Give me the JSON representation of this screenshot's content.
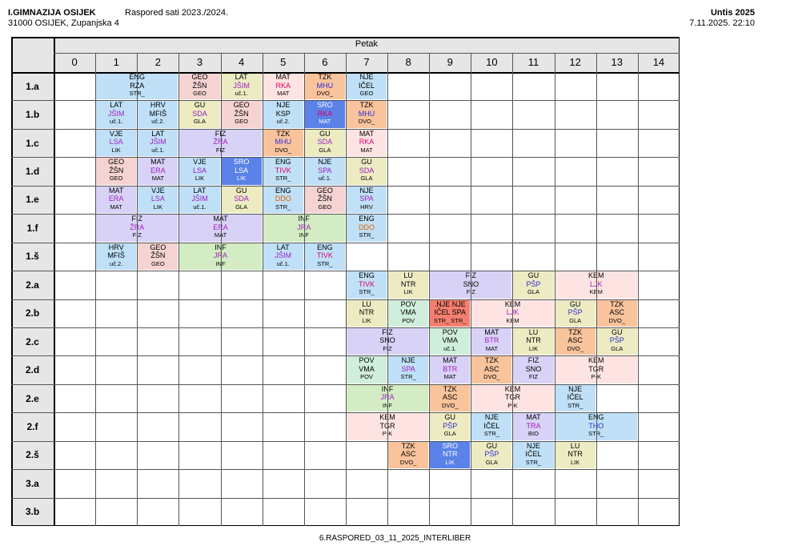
{
  "header": {
    "school": "I.GIMNAZIJA OSIJEK",
    "address": "31000 OSIJEK, Zupanjska 4",
    "schedule_title": "Raspored sati 2023./2024.",
    "app": "Untis 2025",
    "datetime": "7.11.2025.  22:10"
  },
  "day": "Petak",
  "periods": [
    "0",
    "1",
    "2",
    "3",
    "4",
    "5",
    "6",
    "7",
    "8",
    "9",
    "10",
    "11",
    "12",
    "13",
    "14"
  ],
  "rows": [
    "1.a",
    "1.b",
    "1.c",
    "1.d",
    "1.e",
    "1.f",
    "1.š",
    "2.a",
    "2.b",
    "2.c",
    "2.d",
    "2.e",
    "2.f",
    "2.š",
    "3.a",
    "3.b"
  ],
  "colors": {
    "blue": "#bfe0f7",
    "orange": "#f9c39c",
    "purple": "#d9d2f7",
    "yellow": "#ecebc2",
    "pink": "#f6d3d3",
    "green": "#d3ecc3",
    "lightpink": "#fde4e2",
    "darkblue": "#5a82e8",
    "red": "#f57f6f",
    "mint": "#cfeedc",
    "header": "#e6e6e6"
  },
  "lessons": [
    {
      "row": 0,
      "start": 1,
      "span": 2,
      "lines": [
        "ENG",
        "RZA",
        "STR_"
      ],
      "color": "blue",
      "c2": "#000"
    },
    {
      "row": 0,
      "start": 3,
      "span": 1,
      "lines": [
        "GEO",
        "ŽŠN",
        "GEO"
      ],
      "color": "pink",
      "c2": "#000"
    },
    {
      "row": 0,
      "start": 4,
      "span": 1,
      "lines": [
        "LAT",
        "JŠIM",
        "uč.1."
      ],
      "color": "yellow",
      "c2": "#a020c0"
    },
    {
      "row": 0,
      "start": 5,
      "span": 1,
      "lines": [
        "MAT",
        "RKA",
        "MAT"
      ],
      "color": "lightpink",
      "c2": "#e0006a"
    },
    {
      "row": 0,
      "start": 6,
      "span": 1,
      "lines": [
        "TZK",
        "MHU",
        "DVO_"
      ],
      "color": "orange",
      "c2": "#3030d0"
    },
    {
      "row": 0,
      "start": 7,
      "span": 1,
      "lines": [
        "NJE",
        "IČEL",
        "GEO"
      ],
      "color": "blue",
      "c2": "#000"
    },
    {
      "row": 1,
      "start": 1,
      "span": 1,
      "lines": [
        "LAT",
        "JŠIM",
        "uč.1."
      ],
      "color": "blue",
      "c2": "#a020c0"
    },
    {
      "row": 1,
      "start": 2,
      "span": 1,
      "lines": [
        "HRV",
        "MFIŠ",
        "uč.2."
      ],
      "color": "blue",
      "c2": "#000"
    },
    {
      "row": 1,
      "start": 3,
      "span": 1,
      "lines": [
        "GU",
        "SDA",
        "GLA"
      ],
      "color": "yellow",
      "c2": "#a020c0"
    },
    {
      "row": 1,
      "start": 4,
      "span": 1,
      "lines": [
        "GEO",
        "ŽŠN",
        "GEO"
      ],
      "color": "pink",
      "c2": "#000"
    },
    {
      "row": 1,
      "start": 5,
      "span": 1,
      "lines": [
        "NJE",
        "KSP",
        "uč.2."
      ],
      "color": "blue",
      "c2": "#000"
    },
    {
      "row": 1,
      "start": 6,
      "span": 1,
      "lines": [
        "SRO",
        "RKA",
        "MAT"
      ],
      "color": "darkblue",
      "c2": "#e0006a",
      "c1": "#fff",
      "c3": "#fff"
    },
    {
      "row": 1,
      "start": 7,
      "span": 1,
      "lines": [
        "TZK",
        "MHU",
        "DVO_"
      ],
      "color": "orange",
      "c2": "#3030d0"
    },
    {
      "row": 2,
      "start": 1,
      "span": 1,
      "lines": [
        "VJE",
        "LSA",
        "LIK"
      ],
      "color": "blue",
      "c2": "#a020c0"
    },
    {
      "row": 2,
      "start": 2,
      "span": 1,
      "lines": [
        "LAT",
        "JŠIM",
        "uč.1."
      ],
      "color": "blue",
      "c2": "#a020c0"
    },
    {
      "row": 2,
      "start": 3,
      "span": 2,
      "lines": [
        "FIZ",
        "ŽRA",
        "FIZ"
      ],
      "color": "purple",
      "c2": "#a020c0"
    },
    {
      "row": 2,
      "start": 5,
      "span": 1,
      "lines": [
        "TZK",
        "MHU",
        "DVO_"
      ],
      "color": "orange",
      "c2": "#3030d0"
    },
    {
      "row": 2,
      "start": 6,
      "span": 1,
      "lines": [
        "GU",
        "SDA",
        "GLA"
      ],
      "color": "yellow",
      "c2": "#a020c0"
    },
    {
      "row": 2,
      "start": 7,
      "span": 1,
      "lines": [
        "MAT",
        "RKA",
        "MAT"
      ],
      "color": "lightpink",
      "c2": "#e0006a"
    },
    {
      "row": 3,
      "start": 1,
      "span": 1,
      "lines": [
        "GEO",
        "ŽŠN",
        "GEO"
      ],
      "color": "pink",
      "c2": "#000"
    },
    {
      "row": 3,
      "start": 2,
      "span": 1,
      "lines": [
        "MAT",
        "ERA",
        "MAT"
      ],
      "color": "purple",
      "c2": "#a020c0"
    },
    {
      "row": 3,
      "start": 3,
      "span": 1,
      "lines": [
        "VJE",
        "LSA",
        "LIK"
      ],
      "color": "blue",
      "c2": "#a020c0"
    },
    {
      "row": 3,
      "start": 4,
      "span": 1,
      "lines": [
        "SRO",
        "LSA",
        "LIK"
      ],
      "color": "darkblue",
      "c2": "#fff",
      "c1": "#fff",
      "c3": "#fff"
    },
    {
      "row": 3,
      "start": 5,
      "span": 1,
      "lines": [
        "ENG",
        "TIVK",
        "STR_"
      ],
      "color": "blue",
      "c2": "#e0006a"
    },
    {
      "row": 3,
      "start": 6,
      "span": 1,
      "lines": [
        "NJE",
        "SPA",
        "uč.1."
      ],
      "color": "blue",
      "c2": "#a020c0"
    },
    {
      "row": 3,
      "start": 7,
      "span": 1,
      "lines": [
        "GU",
        "SDA",
        "GLA"
      ],
      "color": "yellow",
      "c2": "#a020c0"
    },
    {
      "row": 4,
      "start": 1,
      "span": 1,
      "lines": [
        "MAT",
        "ERA",
        "MAT"
      ],
      "color": "purple",
      "c2": "#a020c0"
    },
    {
      "row": 4,
      "start": 2,
      "span": 1,
      "lines": [
        "VJE",
        "LSA",
        "LIK"
      ],
      "color": "blue",
      "c2": "#a020c0"
    },
    {
      "row": 4,
      "start": 3,
      "span": 1,
      "lines": [
        "LAT",
        "JŠIM",
        "uč.1."
      ],
      "color": "blue",
      "c2": "#a020c0"
    },
    {
      "row": 4,
      "start": 4,
      "span": 1,
      "lines": [
        "GU",
        "SDA",
        "GLA"
      ],
      "color": "yellow",
      "c2": "#a020c0"
    },
    {
      "row": 4,
      "start": 5,
      "span": 1,
      "lines": [
        "ENG",
        "DDO",
        "STR_"
      ],
      "color": "blue",
      "c2": "#e06000"
    },
    {
      "row": 4,
      "start": 6,
      "span": 1,
      "lines": [
        "GEO",
        "ŽŠN",
        "GEO"
      ],
      "color": "pink",
      "c2": "#000"
    },
    {
      "row": 4,
      "start": 7,
      "span": 1,
      "lines": [
        "NJE",
        "SPA",
        "HRV"
      ],
      "color": "blue",
      "c2": "#a020c0"
    },
    {
      "row": 5,
      "start": 1,
      "span": 2,
      "lines": [
        "FIZ",
        "ŽRA",
        "FIZ"
      ],
      "color": "purple",
      "c2": "#a020c0"
    },
    {
      "row": 5,
      "start": 3,
      "span": 2,
      "lines": [
        "MAT",
        "ERA",
        "MAT"
      ],
      "color": "purple",
      "c2": "#a020c0"
    },
    {
      "row": 5,
      "start": 5,
      "span": 2,
      "lines": [
        "INF",
        "JRA",
        "INF"
      ],
      "color": "green",
      "c2": "#a020c0"
    },
    {
      "row": 5,
      "start": 7,
      "span": 1,
      "lines": [
        "ENG",
        "DDO",
        "STR_"
      ],
      "color": "blue",
      "c2": "#e06000"
    },
    {
      "row": 6,
      "start": 1,
      "span": 1,
      "lines": [
        "HRV",
        "MFIŠ",
        "uč.2."
      ],
      "color": "blue",
      "c2": "#000"
    },
    {
      "row": 6,
      "start": 2,
      "span": 1,
      "lines": [
        "GEO",
        "ŽŠN",
        "GEO"
      ],
      "color": "pink",
      "c2": "#000"
    },
    {
      "row": 6,
      "start": 3,
      "span": 2,
      "lines": [
        "INF",
        "JRA",
        "INF"
      ],
      "color": "green",
      "c2": "#a020c0"
    },
    {
      "row": 6,
      "start": 5,
      "span": 1,
      "lines": [
        "LAT",
        "JŠIM",
        "uč.1."
      ],
      "color": "blue",
      "c2": "#a020c0"
    },
    {
      "row": 6,
      "start": 6,
      "span": 1,
      "lines": [
        "ENG",
        "TIVK",
        "STR_"
      ],
      "color": "blue",
      "c2": "#e0006a"
    },
    {
      "row": 7,
      "start": 7,
      "span": 1,
      "lines": [
        "ENG",
        "TIVK",
        "STR_"
      ],
      "color": "blue",
      "c2": "#e0006a"
    },
    {
      "row": 7,
      "start": 8,
      "span": 1,
      "lines": [
        "LU",
        "NTR",
        "LIK"
      ],
      "color": "yellow",
      "c2": "#000"
    },
    {
      "row": 7,
      "start": 9,
      "span": 2,
      "lines": [
        "FIZ",
        "SNO",
        "FIZ"
      ],
      "color": "purple",
      "c2": "#000"
    },
    {
      "row": 7,
      "start": 11,
      "span": 1,
      "lines": [
        "GU",
        "PŠP",
        "GLA"
      ],
      "color": "yellow",
      "c2": "#3030d0"
    },
    {
      "row": 7,
      "start": 12,
      "span": 2,
      "lines": [
        "KEM",
        "LJK",
        "KEM"
      ],
      "color": "lightpink",
      "c2": "#a020c0"
    },
    {
      "row": 8,
      "start": 7,
      "span": 1,
      "lines": [
        "LU",
        "NTR",
        "LIK"
      ],
      "color": "yellow",
      "c2": "#000"
    },
    {
      "row": 8,
      "start": 8,
      "span": 1,
      "lines": [
        "POV",
        "VMA",
        "POV"
      ],
      "color": "mint",
      "c2": "#000"
    },
    {
      "row": 8,
      "start": 9,
      "span": 1,
      "lines": [
        ".NJE NJE",
        "IČEL SPA",
        "STR_ STR_"
      ],
      "color": "red",
      "c2": "#000"
    },
    {
      "row": 8,
      "start": 10,
      "span": 2,
      "lines": [
        "KEM",
        "LJK",
        "KEM"
      ],
      "color": "lightpink",
      "c2": "#a020c0"
    },
    {
      "row": 8,
      "start": 12,
      "span": 1,
      "lines": [
        "GU",
        "PŠP",
        "GLA"
      ],
      "color": "yellow",
      "c2": "#3030d0"
    },
    {
      "row": 8,
      "start": 13,
      "span": 1,
      "lines": [
        "TZK",
        "ASC",
        "DVO_"
      ],
      "color": "orange",
      "c2": "#000"
    },
    {
      "row": 9,
      "start": 7,
      "span": 2,
      "lines": [
        "FIZ",
        "SNO",
        "FIZ"
      ],
      "color": "purple",
      "c2": "#000"
    },
    {
      "row": 9,
      "start": 9,
      "span": 1,
      "lines": [
        "POV",
        "VMA",
        "uč.1."
      ],
      "color": "mint",
      "c2": "#000"
    },
    {
      "row": 9,
      "start": 10,
      "span": 1,
      "lines": [
        "MAT",
        "BTR",
        "MAT"
      ],
      "color": "purple",
      "c2": "#a020c0"
    },
    {
      "row": 9,
      "start": 11,
      "span": 1,
      "lines": [
        "LU",
        "NTR",
        "LIK"
      ],
      "color": "yellow",
      "c2": "#000"
    },
    {
      "row": 9,
      "start": 12,
      "span": 1,
      "lines": [
        "TZK",
        "ASC",
        "DVO_"
      ],
      "color": "orange",
      "c2": "#000"
    },
    {
      "row": 9,
      "start": 13,
      "span": 1,
      "lines": [
        "GU",
        "PŠP",
        "GLA"
      ],
      "color": "yellow",
      "c2": "#3030d0"
    },
    {
      "row": 10,
      "start": 7,
      "span": 1,
      "lines": [
        "POV",
        "VMA",
        "POV"
      ],
      "color": "mint",
      "c2": "#000"
    },
    {
      "row": 10,
      "start": 8,
      "span": 1,
      "lines": [
        "NJE",
        "SPA",
        "STR_"
      ],
      "color": "blue",
      "c2": "#a020c0"
    },
    {
      "row": 10,
      "start": 9,
      "span": 1,
      "lines": [
        "MAT",
        "BTR",
        "MAT"
      ],
      "color": "purple",
      "c2": "#a020c0"
    },
    {
      "row": 10,
      "start": 10,
      "span": 1,
      "lines": [
        "TZK",
        "ASC",
        "DVO_"
      ],
      "color": "orange",
      "c2": "#000"
    },
    {
      "row": 10,
      "start": 11,
      "span": 1,
      "lines": [
        "FIZ",
        "SNO",
        "FIZ"
      ],
      "color": "purple",
      "c2": "#000"
    },
    {
      "row": 10,
      "start": 12,
      "span": 2,
      "lines": [
        "KEM",
        "TGR",
        "P-K"
      ],
      "color": "lightpink",
      "c2": "#000"
    },
    {
      "row": 11,
      "start": 7,
      "span": 2,
      "lines": [
        "INF",
        "JRA",
        "INF"
      ],
      "color": "green",
      "c2": "#a020c0"
    },
    {
      "row": 11,
      "start": 9,
      "span": 1,
      "lines": [
        "TZK",
        "ASC",
        "DVO_"
      ],
      "color": "orange",
      "c2": "#000"
    },
    {
      "row": 11,
      "start": 10,
      "span": 2,
      "lines": [
        "KEM",
        "TGR",
        "P-K"
      ],
      "color": "lightpink",
      "c2": "#000"
    },
    {
      "row": 11,
      "start": 12,
      "span": 1,
      "lines": [
        "NJE",
        "IČEL",
        "STR_"
      ],
      "color": "blue",
      "c2": "#000"
    },
    {
      "row": 12,
      "start": 7,
      "span": 2,
      "lines": [
        "KEM",
        "TGR",
        "P-K"
      ],
      "color": "lightpink",
      "c2": "#000"
    },
    {
      "row": 12,
      "start": 9,
      "span": 1,
      "lines": [
        "GU",
        "PŠP",
        "GLA"
      ],
      "color": "yellow",
      "c2": "#3030d0"
    },
    {
      "row": 12,
      "start": 10,
      "span": 1,
      "lines": [
        "NJE",
        "IČEL",
        "STR_"
      ],
      "color": "blue",
      "c2": "#000"
    },
    {
      "row": 12,
      "start": 11,
      "span": 1,
      "lines": [
        "MAT",
        "TRA",
        "BIO"
      ],
      "color": "purple",
      "c2": "#a020c0"
    },
    {
      "row": 12,
      "start": 12,
      "span": 2,
      "lines": [
        "ENG",
        "THO",
        "STR_"
      ],
      "color": "blue",
      "c2": "#3030d0"
    },
    {
      "row": 13,
      "start": 8,
      "span": 1,
      "lines": [
        "TZK",
        "ASC",
        "DVO_"
      ],
      "color": "orange",
      "c2": "#000"
    },
    {
      "row": 13,
      "start": 9,
      "span": 1,
      "lines": [
        "SRO",
        "NTR",
        "LIK"
      ],
      "color": "darkblue",
      "c2": "#fff",
      "c1": "#fff",
      "c3": "#fff"
    },
    {
      "row": 13,
      "start": 10,
      "span": 1,
      "lines": [
        "GU",
        "PŠP",
        "GLA"
      ],
      "color": "yellow",
      "c2": "#3030d0"
    },
    {
      "row": 13,
      "start": 11,
      "span": 1,
      "lines": [
        "NJE",
        "IČEL",
        "STR_"
      ],
      "color": "blue",
      "c2": "#000"
    },
    {
      "row": 13,
      "start": 12,
      "span": 1,
      "lines": [
        "LU",
        "NTR",
        "LIK"
      ],
      "color": "yellow",
      "c2": "#000"
    }
  ],
  "footer": "6.RASPORED_03_11_2025_INTERLIBER"
}
